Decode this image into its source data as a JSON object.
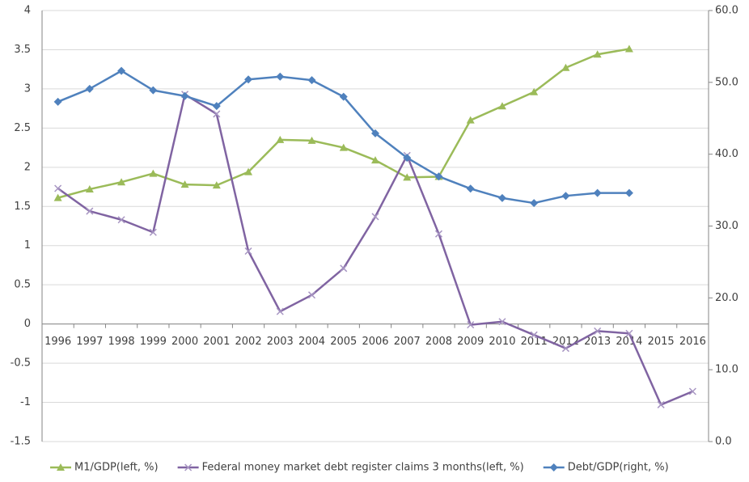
{
  "chart_data": {
    "type": "line",
    "categories": [
      "1996",
      "1997",
      "1998",
      "1999",
      "2000",
      "2001",
      "2002",
      "2003",
      "2004",
      "2005",
      "2006",
      "2007",
      "2008",
      "2009",
      "2010",
      "2011",
      "2012",
      "2013",
      "2014",
      "2015",
      "2016"
    ],
    "series": [
      {
        "name": "M1/GDP(left, %)",
        "color": "#9bbb59",
        "marker": "triangle",
        "axis": "y",
        "values": [
          1.61,
          1.72,
          1.81,
          1.92,
          1.78,
          1.77,
          1.94,
          2.35,
          2.34,
          2.25,
          2.09,
          1.87,
          1.88,
          2.6,
          2.78,
          2.96,
          3.27,
          3.44,
          3.51,
          null,
          null
        ]
      },
      {
        "name": "Federal money market debt register claims 3 months(left, %)",
        "color": "#8064a2",
        "marker": "x",
        "axis": "y",
        "values": [
          1.73,
          1.44,
          1.33,
          1.17,
          2.93,
          2.68,
          0.93,
          0.16,
          0.37,
          0.71,
          1.37,
          2.15,
          1.15,
          -0.01,
          0.03,
          -0.14,
          -0.31,
          -0.09,
          -0.12,
          -1.03,
          -0.86
        ]
      },
      {
        "name": "Debt/GDP(right, %)",
        "color": "#4f81bd",
        "marker": "diamond",
        "axis": "y2",
        "values": [
          47.3,
          49.1,
          51.6,
          48.9,
          48.1,
          46.7,
          50.4,
          50.8,
          50.3,
          48.0,
          42.9,
          39.5,
          36.9,
          35.2,
          33.9,
          33.2,
          34.2,
          34.6,
          34.6,
          null,
          null
        ]
      }
    ],
    "ylim": [
      -1.5,
      4
    ],
    "yticks": [
      -1.5,
      -1,
      -0.5,
      0,
      0.5,
      1,
      1.5,
      2,
      2.5,
      3,
      3.5,
      4
    ],
    "y2lim": [
      0,
      60
    ],
    "y2ticks": [
      {
        "value": 0,
        "label": "0.0"
      },
      {
        "value": 10,
        "label": "10.0"
      },
      {
        "value": 20,
        "label": "20.0"
      },
      {
        "value": 30,
        "label": "30.0"
      },
      {
        "value": 40,
        "label": "40.0"
      },
      {
        "value": 50,
        "label": "50.0"
      },
      {
        "value": 60,
        "label": "60.0"
      }
    ],
    "grid": true,
    "legend": "bottom"
  }
}
